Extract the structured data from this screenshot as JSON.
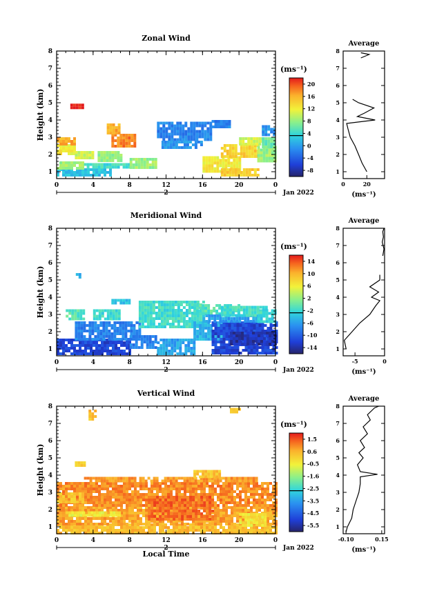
{
  "chart_data": [
    {
      "type": "heatmap",
      "title": "Zonal Wind",
      "ylabel": "Height (km)",
      "xlabel": "",
      "x_ticks": [
        "0",
        "4",
        "8",
        "12",
        "16",
        "20",
        "0"
      ],
      "y_ticks": [
        "1",
        "2",
        "3",
        "4",
        "5",
        "6",
        "7",
        "8"
      ],
      "xlim": [
        0,
        24
      ],
      "ylim": [
        0.6,
        8
      ],
      "date_day": "2",
      "date_month": "Jan 2022",
      "colorbar": {
        "unit": "(ms⁻¹)",
        "ticks": [
          "20",
          "16",
          "12",
          "8",
          "4",
          "0",
          "-4",
          "-8"
        ],
        "range": [
          -10,
          22
        ]
      },
      "average_panel": {
        "title": "Average",
        "xlabel": "(ms⁻¹)",
        "x_ticks": [
          "0",
          "20"
        ],
        "xlim": [
          0,
          35
        ],
        "profile": [
          [
            1,
            20
          ],
          [
            1.5,
            16
          ],
          [
            2,
            13
          ],
          [
            2.5,
            10
          ],
          [
            3,
            6
          ],
          [
            3.5,
            4
          ],
          [
            3.8,
            3
          ],
          [
            4.0,
            27
          ],
          [
            4.2,
            12
          ],
          [
            4.4,
            18
          ],
          [
            4.7,
            26
          ],
          [
            5.0,
            13
          ],
          [
            5.2,
            8
          ]
        ],
        "profile_top": [
          [
            7.6,
            15
          ],
          [
            7.8,
            22
          ],
          [
            7.9,
            15
          ]
        ]
      },
      "regions": [
        {
          "x0": 0,
          "x1": 6,
          "y0": 0.8,
          "y1": 1.2,
          "v": 2
        },
        {
          "x0": 0,
          "x1": 3,
          "y0": 1.2,
          "y1": 1.6,
          "v": 8
        },
        {
          "x0": 3,
          "x1": 8,
          "y0": 1.2,
          "y1": 1.5,
          "v": 4
        },
        {
          "x0": 0,
          "x1": 2,
          "y0": 2.0,
          "y1": 2.6,
          "v": 12
        },
        {
          "x0": 0,
          "x1": 2,
          "y0": 2.6,
          "y1": 3.0,
          "v": 16
        },
        {
          "x0": 2,
          "x1": 4,
          "y0": 1.8,
          "y1": 2.2,
          "v": 10
        },
        {
          "x0": 4.5,
          "x1": 7,
          "y0": 1.6,
          "y1": 2.2,
          "v": 8
        },
        {
          "x0": 6,
          "x1": 8.5,
          "y0": 2.4,
          "y1": 3.2,
          "v": 18
        },
        {
          "x0": 5.5,
          "x1": 7,
          "y0": 3.2,
          "y1": 3.8,
          "v": 16
        },
        {
          "x0": 1.5,
          "x1": 2.8,
          "y0": 4.7,
          "y1": 4.95,
          "v": 22
        },
        {
          "x0": 8,
          "x1": 11,
          "y0": 1.2,
          "y1": 1.8,
          "v": 8
        },
        {
          "x0": 11,
          "x1": 17,
          "y0": 2.8,
          "y1": 3.9,
          "v": -2
        },
        {
          "x0": 11.5,
          "x1": 16,
          "y0": 2.4,
          "y1": 2.8,
          "v": -1
        },
        {
          "x0": 17,
          "x1": 19,
          "y0": 3.6,
          "y1": 4.0,
          "v": -2
        },
        {
          "x0": 22.5,
          "x1": 24,
          "y0": 3.2,
          "y1": 3.7,
          "v": -1
        },
        {
          "x0": 16,
          "x1": 20,
          "y0": 1.0,
          "y1": 1.9,
          "v": 12
        },
        {
          "x0": 18,
          "x1": 22,
          "y0": 1.8,
          "y1": 2.6,
          "v": 14
        },
        {
          "x0": 20,
          "x1": 22.5,
          "y0": 2.6,
          "y1": 3.0,
          "v": 10
        },
        {
          "x0": 22,
          "x1": 24,
          "y0": 1.6,
          "y1": 2.5,
          "v": 8
        },
        {
          "x0": 22.5,
          "x1": 24,
          "y0": 2.5,
          "y1": 3.0,
          "v": 6
        },
        {
          "x0": 18,
          "x1": 22,
          "y0": 0.8,
          "y1": 1.2,
          "v": 14
        }
      ]
    },
    {
      "type": "heatmap",
      "title": "Meridional Wind",
      "ylabel": "Height (km)",
      "xlabel": "",
      "x_ticks": [
        "0",
        "4",
        "8",
        "12",
        "16",
        "20",
        "0"
      ],
      "y_ticks": [
        "1",
        "2",
        "3",
        "4",
        "5",
        "6",
        "7",
        "8"
      ],
      "xlim": [
        0,
        24
      ],
      "ylim": [
        0.6,
        8
      ],
      "date_day": "2",
      "date_month": "Jan 2022",
      "colorbar": {
        "unit": "(ms⁻¹)",
        "ticks": [
          "14",
          "10",
          "6",
          "2",
          "-2",
          "-6",
          "-10",
          "-14"
        ],
        "range": [
          -16,
          16
        ]
      },
      "average_panel": {
        "title": "Average",
        "xlabel": "(ms⁻¹)",
        "x_ticks": [
          "-5",
          "0"
        ],
        "xlim": [
          -7,
          0
        ],
        "profile": [
          [
            1,
            -6.5
          ],
          [
            1.5,
            -6.8
          ],
          [
            2,
            -5.5
          ],
          [
            2.5,
            -4.2
          ],
          [
            3,
            -2.5
          ],
          [
            3.5,
            -1.5
          ],
          [
            3.8,
            -0.8
          ],
          [
            4.0,
            -2.2
          ],
          [
            4.3,
            -1
          ],
          [
            4.6,
            -2.5
          ],
          [
            5.0,
            -0.8
          ],
          [
            5.3,
            -0.8
          ]
        ],
        "profile_top": [
          [
            6.4,
            -0.3
          ],
          [
            6.8,
            -0.1
          ],
          [
            7.2,
            -0.4
          ],
          [
            7.5,
            -0.2
          ],
          [
            7.8,
            -0.3
          ],
          [
            8,
            -0.1
          ]
        ]
      },
      "regions": [
        {
          "x0": 0,
          "x1": 8,
          "y0": 0.7,
          "y1": 1.6,
          "v": -12
        },
        {
          "x0": 2,
          "x1": 9,
          "y0": 1.6,
          "y1": 2.6,
          "v": -8
        },
        {
          "x0": 1,
          "x1": 3,
          "y0": 2.8,
          "y1": 3.3,
          "v": -1
        },
        {
          "x0": 4,
          "x1": 7,
          "y0": 2.8,
          "y1": 3.3,
          "v": -2
        },
        {
          "x0": 1.8,
          "x1": 2.6,
          "y0": 5.2,
          "y1": 5.4,
          "v": -6
        },
        {
          "x0": 9,
          "x1": 16,
          "y0": 2.2,
          "y1": 3.8,
          "v": -2
        },
        {
          "x0": 8,
          "x1": 11,
          "y0": 1.0,
          "y1": 1.8,
          "v": -8
        },
        {
          "x0": 11,
          "x1": 15,
          "y0": 0.7,
          "y1": 1.6,
          "v": -6
        },
        {
          "x0": 15,
          "x1": 19,
          "y0": 1.5,
          "y1": 2.6,
          "v": -5
        },
        {
          "x0": 15,
          "x1": 20,
          "y0": 3.0,
          "y1": 3.6,
          "v": -1
        },
        {
          "x0": 17,
          "x1": 24,
          "y0": 0.7,
          "y1": 2.6,
          "v": -12
        },
        {
          "x0": 19,
          "x1": 24,
          "y0": 1.2,
          "y1": 2.0,
          "v": -14
        },
        {
          "x0": 16,
          "x1": 22,
          "y0": 2.6,
          "y1": 3.0,
          "v": -6
        },
        {
          "x0": 22,
          "x1": 24,
          "y0": 2.6,
          "y1": 3.3,
          "v": -3
        },
        {
          "x0": 18,
          "x1": 23,
          "y0": 3.0,
          "y1": 3.5,
          "v": -2
        },
        {
          "x0": 6,
          "x1": 8,
          "y0": 3.6,
          "y1": 3.9,
          "v": -4
        }
      ]
    },
    {
      "type": "heatmap",
      "title": "Vertical Wind",
      "ylabel": "Height (km)",
      "xlabel": "Local Time",
      "x_ticks": [
        "0",
        "4",
        "8",
        "12",
        "16",
        "20",
        "0"
      ],
      "y_ticks": [
        "1",
        "2",
        "3",
        "4",
        "5",
        "6",
        "7",
        "8"
      ],
      "xlim": [
        0,
        24
      ],
      "ylim": [
        0.6,
        8
      ],
      "date_day": "2",
      "date_month": "Jan 2022",
      "colorbar": {
        "unit": "(ms⁻¹)",
        "ticks": [
          "1.5",
          "0.6",
          "-0.5",
          "-1.6",
          "-2.5",
          "-3.5",
          "-4.5",
          "-5.5"
        ],
        "range": [
          -6,
          2
        ]
      },
      "average_panel": {
        "title": "Average",
        "xlabel": "(ms⁻¹)",
        "x_ticks": [
          "-0.10",
          "0.15"
        ],
        "xlim": [
          -0.12,
          0.17
        ],
        "profile": [
          [
            0.7,
            -0.1
          ],
          [
            1.0,
            -0.09
          ],
          [
            1.5,
            -0.06
          ],
          [
            2.0,
            -0.05
          ],
          [
            2.5,
            -0.03
          ],
          [
            3.0,
            -0.01
          ],
          [
            3.5,
            0.0
          ],
          [
            3.9,
            0.0
          ],
          [
            4.05,
            0.12
          ],
          [
            4.2,
            0.0
          ],
          [
            4.6,
            -0.02
          ],
          [
            5.0,
            0.02
          ],
          [
            5.3,
            -0.01
          ],
          [
            5.6,
            0.03
          ],
          [
            6.0,
            0.0
          ],
          [
            6.4,
            0.05
          ],
          [
            6.8,
            0.02
          ],
          [
            7.2,
            0.07
          ],
          [
            7.5,
            0.05
          ],
          [
            7.9,
            0.1
          ],
          [
            8.0,
            0.13
          ]
        ],
        "profile_top": []
      },
      "regions": [
        {
          "x0": 0,
          "x1": 24,
          "y0": 0.7,
          "y1": 1.2,
          "v": 0.3
        },
        {
          "x0": 0,
          "x1": 24,
          "y0": 1.2,
          "y1": 2.2,
          "v": 0.6
        },
        {
          "x0": 0,
          "x1": 24,
          "y0": 2.2,
          "y1": 3.6,
          "v": 0.9
        },
        {
          "x0": 3,
          "x1": 22,
          "y0": 3.6,
          "y1": 3.9,
          "v": 0.7
        },
        {
          "x0": 1,
          "x1": 7,
          "y0": 1.6,
          "y1": 1.9,
          "v": -0.5
        },
        {
          "x0": 10,
          "x1": 17,
          "y0": 1.5,
          "y1": 2.8,
          "v": 1.2
        },
        {
          "x0": 20,
          "x1": 23,
          "y0": 1.0,
          "y1": 1.8,
          "v": -0.4
        },
        {
          "x0": 0,
          "x1": 3,
          "y0": 2.4,
          "y1": 3.0,
          "v": 0.2
        },
        {
          "x0": 2,
          "x1": 3,
          "y0": 4.6,
          "y1": 4.8,
          "v": 0.2
        },
        {
          "x0": 15,
          "x1": 18,
          "y0": 3.9,
          "y1": 4.3,
          "v": 0.2
        },
        {
          "x0": 19,
          "x1": 20,
          "y0": 7.6,
          "y1": 7.9,
          "v": 0.3
        },
        {
          "x0": 3.5,
          "x1": 4.2,
          "y0": 7.3,
          "y1": 7.8,
          "v": 0.2
        }
      ]
    }
  ]
}
